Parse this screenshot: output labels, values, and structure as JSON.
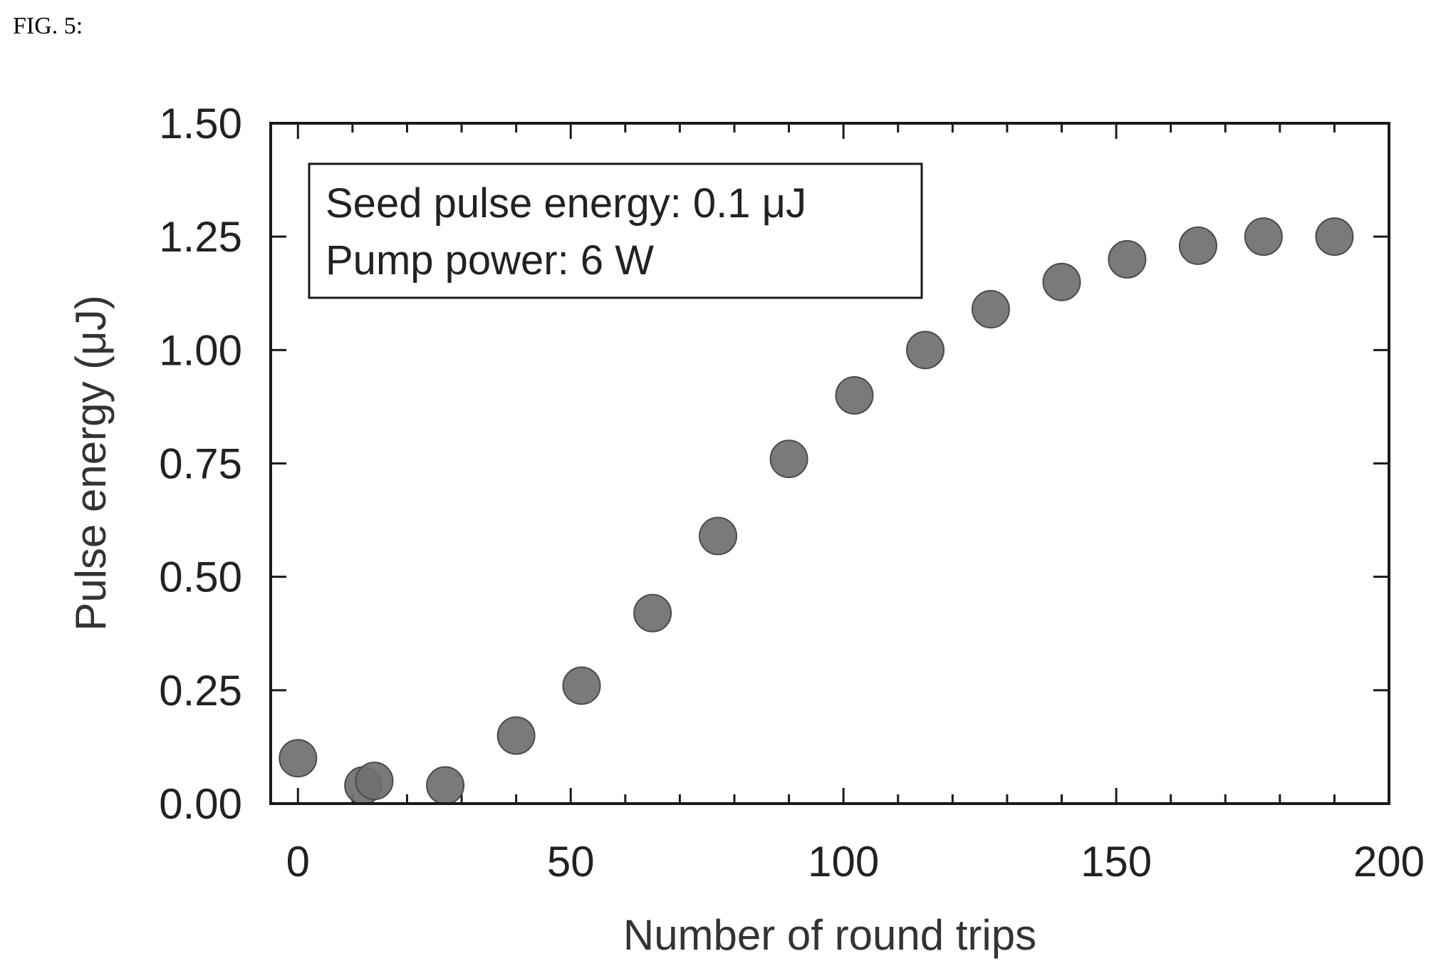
{
  "figure_label": "FIG. 5:",
  "chart_data": {
    "type": "scatter",
    "xlabel": "Number of round trips",
    "ylabel": "Pulse energy (μJ)",
    "xlim": [
      -5,
      200
    ],
    "ylim": [
      0,
      1.5
    ],
    "x_ticks": [
      "0",
      "50",
      "100",
      "150",
      "200"
    ],
    "y_ticks": [
      "0.00",
      "0.25",
      "0.50",
      "0.75",
      "1.00",
      "1.25",
      "1.50"
    ],
    "legend_lines": [
      "Seed pulse energy: 0.1 μJ",
      "Pump power: 6 W"
    ],
    "legend_position": "top-left",
    "marker_color": "#6f6f6f",
    "series": [
      {
        "x": [
          0,
          12,
          14,
          27,
          40,
          52,
          65,
          77,
          90,
          102,
          115,
          127,
          140,
          152,
          165,
          177,
          190
        ],
        "y": [
          0.1,
          0.04,
          0.05,
          0.04,
          0.15,
          0.26,
          0.42,
          0.59,
          0.76,
          0.9,
          1.0,
          1.09,
          1.15,
          1.2,
          1.23,
          1.25,
          1.25
        ]
      }
    ]
  }
}
